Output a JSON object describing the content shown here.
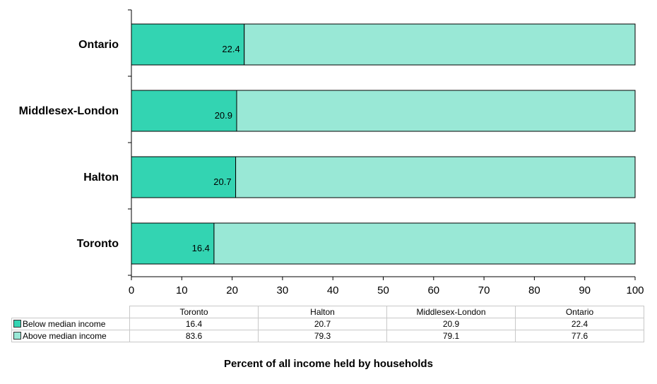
{
  "chart_data": {
    "type": "bar",
    "orientation": "horizontal",
    "stacked": true,
    "categories": [
      "Ontario",
      "Middlesex-London",
      "Halton",
      "Toronto"
    ],
    "series": [
      {
        "name": "Below median income",
        "values": [
          22.4,
          20.9,
          20.7,
          16.4
        ],
        "color": "#33d4b2"
      },
      {
        "name": "Above median income",
        "values": [
          77.6,
          79.1,
          79.3,
          83.6
        ],
        "color": "#99e8d6"
      }
    ],
    "xlim": [
      0,
      100
    ],
    "xticks": [
      0,
      10,
      20,
      30,
      40,
      50,
      60,
      70,
      80,
      90,
      100
    ],
    "xlabel": "Percent of all income held by households",
    "grid": false,
    "legend": "data table below chart"
  },
  "table": {
    "columns": [
      "Toronto",
      "Halton",
      "Middlesex-London",
      "Ontario"
    ],
    "rows": [
      {
        "label": "Below median income",
        "values": [
          "16.4",
          "20.7",
          "20.9",
          "22.4"
        ]
      },
      {
        "label": "Above median income",
        "values": [
          "83.6",
          "79.3",
          "79.1",
          "77.6"
        ]
      }
    ]
  }
}
